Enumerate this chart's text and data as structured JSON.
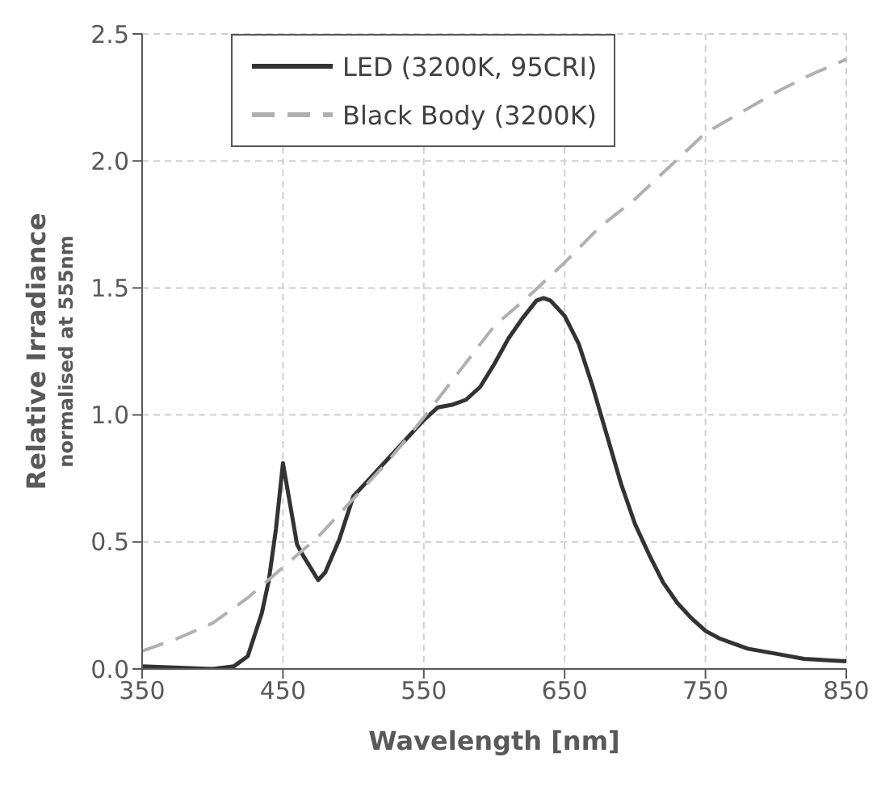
{
  "chart_data": {
    "type": "line",
    "xlabel": "Wavelength [nm]",
    "ylabel": "Relative Irradiance",
    "annotations": [
      "normalised at 555nm"
    ],
    "xlim": [
      350,
      850
    ],
    "xticks": [
      350,
      450,
      550,
      650,
      750,
      850
    ],
    "ylim": [
      0,
      2.5
    ],
    "yticks": [
      {
        "value": 0,
        "label": "0.0"
      },
      0.5,
      {
        "value": 1,
        "label": "1.0"
      },
      1.5,
      {
        "value": 2,
        "label": "2.0"
      },
      2.5
    ],
    "grid": true,
    "legend": "top left",
    "marker": "none",
    "series": [
      {
        "name": "LED (3200K, 95CRI)",
        "color": "#333333",
        "line_style": "solid",
        "x": [
          350,
          400,
          415,
          425,
          435,
          440,
          445,
          450,
          455,
          460,
          465,
          475,
          480,
          490,
          500,
          510,
          520,
          530,
          540,
          550,
          560,
          570,
          580,
          590,
          600,
          610,
          620,
          630,
          635,
          640,
          650,
          660,
          670,
          680,
          690,
          700,
          710,
          720,
          730,
          740,
          750,
          760,
          770,
          780,
          800,
          820,
          850
        ],
        "values": [
          0.01,
          0.0,
          0.01,
          0.05,
          0.22,
          0.35,
          0.55,
          0.81,
          0.65,
          0.49,
          0.44,
          0.35,
          0.38,
          0.51,
          0.68,
          0.74,
          0.8,
          0.86,
          0.92,
          0.98,
          1.03,
          1.04,
          1.06,
          1.11,
          1.2,
          1.3,
          1.38,
          1.45,
          1.46,
          1.45,
          1.39,
          1.28,
          1.11,
          0.92,
          0.73,
          0.57,
          0.45,
          0.34,
          0.26,
          0.2,
          0.15,
          0.12,
          0.1,
          0.08,
          0.06,
          0.04,
          0.03
        ]
      },
      {
        "name": "Black Body (3200K)",
        "color": "#b0b0b0",
        "line_style": "dashed",
        "x": [
          350,
          375,
          400,
          425,
          450,
          475,
          500,
          525,
          550,
          575,
          600,
          625,
          650,
          675,
          700,
          725,
          750,
          775,
          800,
          825,
          850
        ],
        "values": [
          0.07,
          0.12,
          0.18,
          0.28,
          0.4,
          0.52,
          0.67,
          0.82,
          0.99,
          1.17,
          1.35,
          1.47,
          1.6,
          1.74,
          1.85,
          1.98,
          2.11,
          2.19,
          2.27,
          2.34,
          2.4
        ]
      }
    ]
  }
}
